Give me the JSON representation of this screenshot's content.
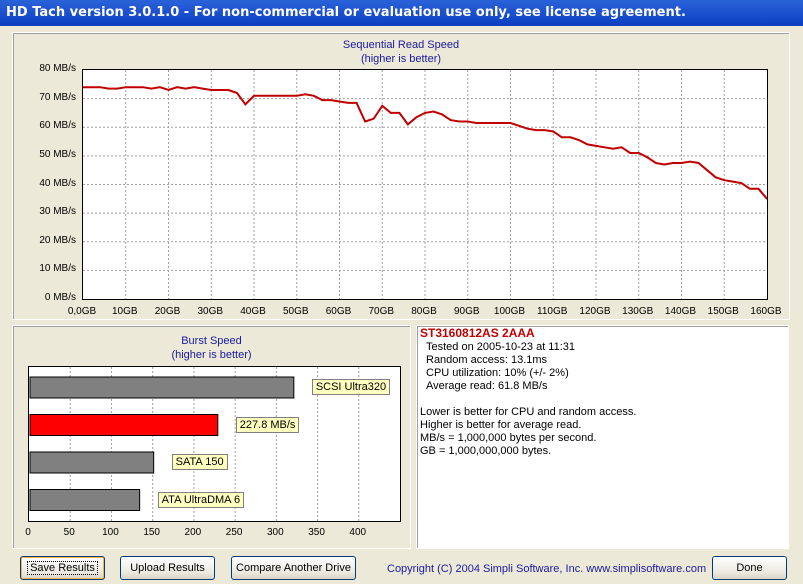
{
  "window": {
    "title": "HD Tach version 3.0.1.0  - For non-commercial or evaluation use only, see license agreement."
  },
  "seq_chart": {
    "title": "Sequential Read Speed",
    "subtitle": "(higher is better)",
    "y_ticks": [
      "80 MB/s",
      "70 MB/s",
      "60 MB/s",
      "50 MB/s",
      "40 MB/s",
      "30 MB/s",
      "20 MB/s",
      "10 MB/s",
      "0 MB/s"
    ],
    "x_ticks": [
      "0,0GB",
      "10GB",
      "20GB",
      "30GB",
      "40GB",
      "50GB",
      "60GB",
      "70GB",
      "80GB",
      "90GB",
      "100GB",
      "110GB",
      "120GB",
      "130GB",
      "140GB",
      "150GB",
      "160GB"
    ],
    "line_color": "#c00000"
  },
  "burst_chart": {
    "title": "Burst Speed",
    "subtitle": "(higher is better)",
    "x_ticks": [
      "0",
      "50",
      "100",
      "150",
      "200",
      "250",
      "300",
      "350",
      "400"
    ],
    "bars": [
      {
        "label": "SCSI Ultra320",
        "value": 320,
        "color": "#808080"
      },
      {
        "label": "227.8 MB/s",
        "value": 227.8,
        "color": "#ff0000"
      },
      {
        "label": "SATA 150",
        "value": 150,
        "color": "#808080"
      },
      {
        "label": "ATA UltraDMA 6",
        "value": 133,
        "color": "#808080"
      }
    ]
  },
  "info": {
    "drive": "ST3160812AS 2AAA",
    "tested": "Tested on 2005-10-23 at 11:31",
    "random": "Random access: 13.1ms",
    "cpu": "CPU utilization: 10% (+/- 2%)",
    "avg": "Average read: 61.8 MB/s",
    "note1": "Lower is better for CPU and random access.",
    "note2": "Higher is better for average read.",
    "note3": "MB/s = 1,000,000 bytes per second.",
    "note4": "GB = 1,000,000,000 bytes."
  },
  "buttons": {
    "save": "Save Results",
    "upload": "Upload Results",
    "compare": "Compare Another Drive",
    "done": "Done"
  },
  "copyright": "Copyright (C) 2004 Simpli Software, Inc. www.simplisoftware.com",
  "chart_data": [
    {
      "type": "line",
      "title": "Sequential Read Speed",
      "subtitle": "(higher is better)",
      "xlabel": "",
      "ylabel": "",
      "xlim": [
        0,
        160
      ],
      "ylim": [
        0,
        80
      ],
      "grid": true,
      "x": [
        0,
        4,
        6,
        8,
        10,
        12,
        14,
        16,
        18,
        20,
        22,
        24,
        26,
        28,
        30,
        32,
        34,
        36,
        38,
        40,
        42,
        44,
        46,
        48,
        50,
        52,
        54,
        56,
        58,
        60,
        62,
        64,
        66,
        68,
        70,
        72,
        74,
        76,
        78,
        80,
        82,
        84,
        86,
        88,
        90,
        92,
        94,
        96,
        98,
        100,
        102,
        104,
        106,
        108,
        110,
        112,
        114,
        116,
        118,
        120,
        122,
        124,
        126,
        128,
        130,
        132,
        134,
        136,
        138,
        140,
        142,
        144,
        146,
        148,
        150,
        152,
        154,
        156,
        158,
        160
      ],
      "y": [
        74,
        74,
        73.5,
        73.5,
        74,
        74,
        74,
        73.5,
        74,
        73,
        74,
        73.5,
        74,
        73.5,
        73,
        73,
        73,
        72,
        68,
        71,
        71,
        71,
        71,
        71,
        71,
        71.5,
        71,
        69.5,
        69.5,
        69,
        68.5,
        68.5,
        62,
        63,
        67.5,
        65,
        65,
        61,
        63.5,
        65,
        65.5,
        64.5,
        62.5,
        62,
        62,
        61.5,
        61.5,
        61.5,
        61.5,
        61.5,
        60.5,
        59.5,
        59,
        59,
        58.5,
        56.5,
        56.5,
        55.5,
        54,
        53.5,
        53,
        52.5,
        53,
        51,
        51,
        49.5,
        47.5,
        47,
        47.5,
        47.5,
        48,
        47.5,
        45,
        42.5,
        41.5,
        41,
        40.5,
        38.5,
        38.5,
        35
      ]
    },
    {
      "type": "bar",
      "title": "Burst Speed",
      "subtitle": "(higher is better)",
      "categories": [
        "SCSI Ultra320",
        "227.8 MB/s",
        "SATA 150",
        "ATA UltraDMA 6"
      ],
      "values": [
        320,
        227.8,
        150,
        133
      ],
      "xlim": [
        0,
        450
      ],
      "grid": true
    }
  ]
}
